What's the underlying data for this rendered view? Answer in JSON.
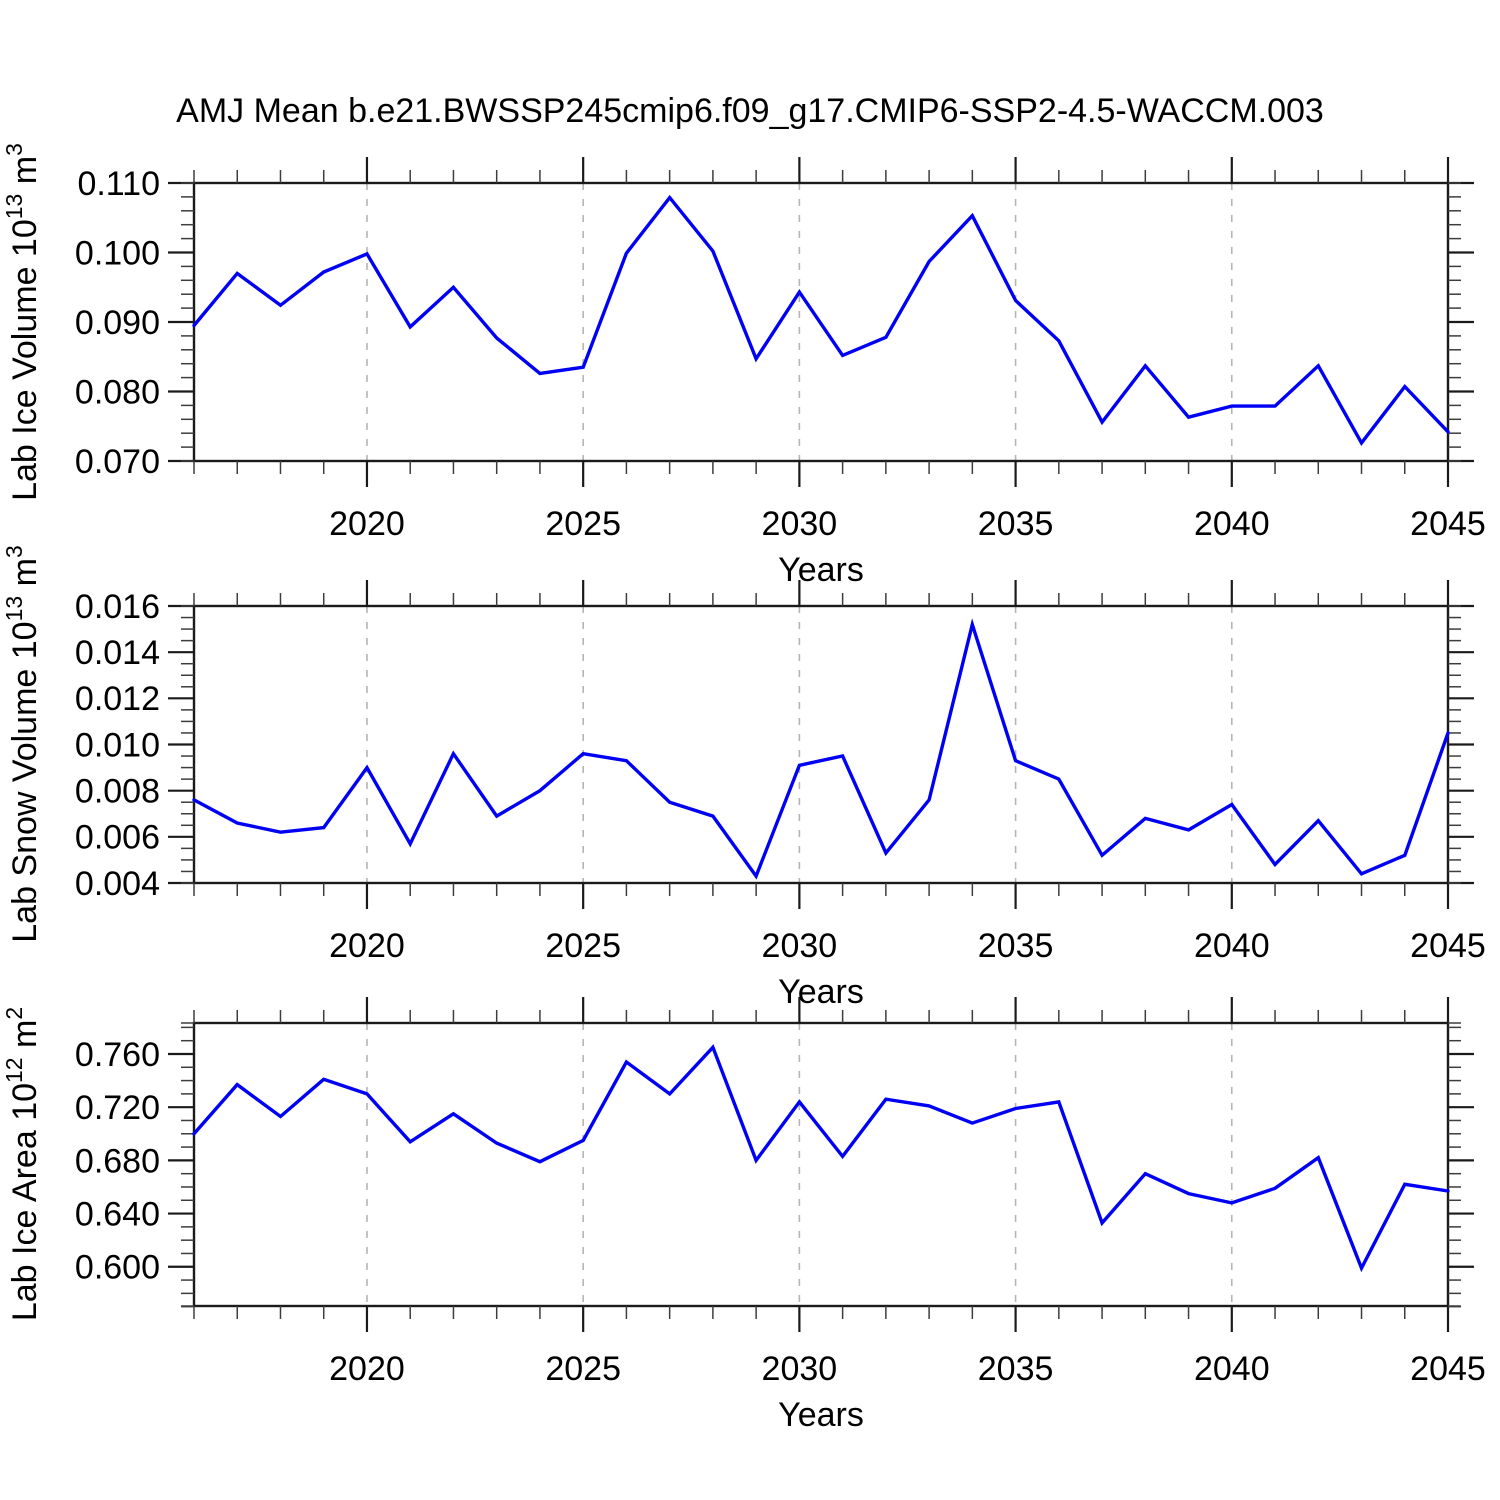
{
  "title": "AMJ Mean b.e21.BWSSP245cmip6.f09_g17.CMIP6-SSP2-4.5-WACCM.003",
  "colors": {
    "line": "#0000f5",
    "grid": "#b5b5b5",
    "axis": "#1a1a1a",
    "minor_tick": "#3d3d3d",
    "text": "#000000",
    "background": "#ffffff"
  },
  "x_axis": {
    "label": "Years",
    "start": 2016,
    "end": 2045,
    "major_ticks": [
      2020,
      2025,
      2030,
      2035,
      2040,
      2045
    ],
    "gridline_years": [
      2020,
      2025,
      2030,
      2035,
      2040
    ],
    "minor_step": 1
  },
  "panels": [
    {
      "id": "ice-volume",
      "ylabel_prefix": "Lab Ice Volume 10",
      "ylabel_exp": "13",
      "ylabel_unit": " m",
      "ylabel_unit_exp": "3",
      "xlabel": "Years",
      "ytick_labels": [
        "0.070",
        "0.080",
        "0.090",
        "0.100",
        "0.110"
      ],
      "ytick_values": [
        0.07,
        0.08,
        0.09,
        0.1,
        0.11
      ],
      "yminor_step": 0.002,
      "ylim": [
        0.07,
        0.11
      ]
    },
    {
      "id": "snow-volume",
      "ylabel_prefix": "Lab Snow Volume 10",
      "ylabel_exp": "13",
      "ylabel_unit": " m",
      "ylabel_unit_exp": "3",
      "xlabel": "Years",
      "ytick_labels": [
        "0.004",
        "0.006",
        "0.008",
        "0.010",
        "0.012",
        "0.014",
        "0.016"
      ],
      "ytick_values": [
        0.004,
        0.006,
        0.008,
        0.01,
        0.012,
        0.014,
        0.016
      ],
      "yminor_step": 0.0005,
      "ylim": [
        0.004,
        0.016
      ]
    },
    {
      "id": "ice-area",
      "ylabel_prefix": "Lab Ice Area 10",
      "ylabel_exp": "12",
      "ylabel_unit": " m",
      "ylabel_unit_exp": "2",
      "xlabel": "Years",
      "ytick_labels": [
        "0.600",
        "0.640",
        "0.680",
        "0.720",
        "0.760"
      ],
      "ytick_values": [
        0.6,
        0.64,
        0.68,
        0.72,
        0.76
      ],
      "yminor_step": 0.01,
      "ylim": [
        0.5705,
        0.7833
      ]
    }
  ],
  "chart_data": [
    {
      "type": "line",
      "title": "Lab Ice Volume 10^13 m^3",
      "xlabel": "Years",
      "x": [
        2016,
        2017,
        2018,
        2019,
        2020,
        2021,
        2022,
        2023,
        2024,
        2025,
        2026,
        2027,
        2028,
        2029,
        2030,
        2031,
        2032,
        2033,
        2034,
        2035,
        2036,
        2037,
        2038,
        2039,
        2040,
        2041,
        2042,
        2043,
        2044,
        2045
      ],
      "values": [
        0.0895,
        0.097,
        0.0924,
        0.0972,
        0.0998,
        0.0893,
        0.095,
        0.0877,
        0.0826,
        0.0835,
        0.0999,
        0.1079,
        0.1002,
        0.0847,
        0.0943,
        0.0852,
        0.0878,
        0.0987,
        0.1053,
        0.0931,
        0.0873,
        0.0756,
        0.0837,
        0.0763,
        0.0779,
        0.0779,
        0.0837,
        0.0726,
        0.0807,
        0.0742
      ],
      "ylim": [
        0.07,
        0.11
      ],
      "grid": "vertical-dashed",
      "legend": "none"
    },
    {
      "type": "line",
      "title": "Lab Snow Volume 10^13 m^3",
      "xlabel": "Years",
      "x": [
        2016,
        2017,
        2018,
        2019,
        2020,
        2021,
        2022,
        2023,
        2024,
        2025,
        2026,
        2027,
        2028,
        2029,
        2030,
        2031,
        2032,
        2033,
        2034,
        2035,
        2036,
        2037,
        2038,
        2039,
        2040,
        2041,
        2042,
        2043,
        2044,
        2045
      ],
      "values": [
        0.0076,
        0.0066,
        0.0062,
        0.0064,
        0.009,
        0.0057,
        0.0096,
        0.0069,
        0.008,
        0.0096,
        0.0093,
        0.0075,
        0.0069,
        0.0043,
        0.0091,
        0.0095,
        0.0053,
        0.0076,
        0.0152,
        0.0093,
        0.0085,
        0.0052,
        0.0068,
        0.0063,
        0.0074,
        0.0048,
        0.0067,
        0.0044,
        0.0052,
        0.0105
      ],
      "ylim": [
        0.004,
        0.016
      ],
      "grid": "vertical-dashed",
      "legend": "none"
    },
    {
      "type": "line",
      "title": "Lab Ice Area 10^12 m^2",
      "xlabel": "Years",
      "x": [
        2016,
        2017,
        2018,
        2019,
        2020,
        2021,
        2022,
        2023,
        2024,
        2025,
        2026,
        2027,
        2028,
        2029,
        2030,
        2031,
        2032,
        2033,
        2034,
        2035,
        2036,
        2037,
        2038,
        2039,
        2040,
        2041,
        2042,
        2043,
        2044,
        2045
      ],
      "values": [
        0.7,
        0.737,
        0.713,
        0.741,
        0.73,
        0.694,
        0.715,
        0.693,
        0.679,
        0.695,
        0.754,
        0.73,
        0.765,
        0.68,
        0.724,
        0.683,
        0.726,
        0.721,
        0.708,
        0.719,
        0.724,
        0.633,
        0.67,
        0.655,
        0.648,
        0.659,
        0.682,
        0.599,
        0.662,
        0.657
      ],
      "ylim": [
        0.5705,
        0.7833
      ],
      "grid": "vertical-dashed",
      "legend": "none"
    }
  ]
}
